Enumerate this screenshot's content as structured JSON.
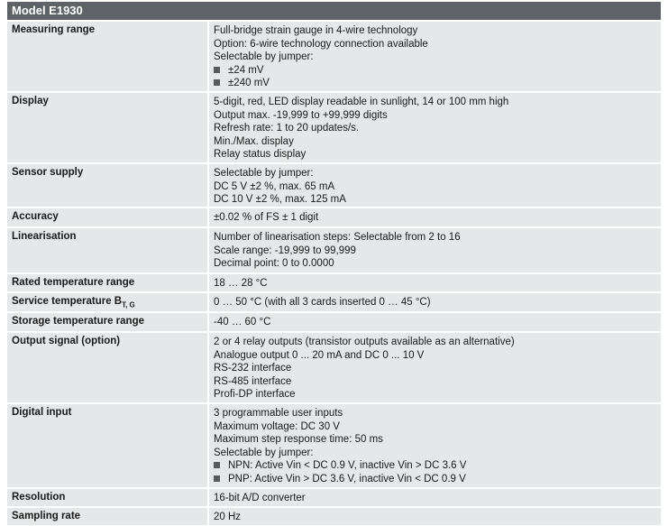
{
  "title": "Model E1930",
  "rows": [
    {
      "label": "Measuring range",
      "lines": [
        {
          "text": "Full-bridge strain gauge in 4-wire technology"
        },
        {
          "text": "Option: 6-wire technology connection available"
        },
        {
          "text": "Selectable by jumper:"
        },
        {
          "text": "±24 mV",
          "bullet": true
        },
        {
          "text": "±240 mV",
          "bullet": true
        }
      ]
    },
    {
      "label": "Display",
      "lines": [
        {
          "text": "5-digit, red, LED display readable in sunlight, 14 or 100 mm high"
        },
        {
          "text": "Output max. -19,999 to +99,999 digits"
        },
        {
          "text": "Refresh rate: 1 to 20 updates/s."
        },
        {
          "text": "Min./Max. display"
        },
        {
          "text": "Relay status display"
        }
      ]
    },
    {
      "label": "Sensor supply",
      "lines": [
        {
          "text": "Selectable by jumper:"
        },
        {
          "text": "DC 5 V ±2 %, max. 65 mA"
        },
        {
          "text": "DC 10 V ±2 %, max. 125 mA"
        }
      ]
    },
    {
      "label": "Accuracy",
      "lines": [
        {
          "text": "±0.02 % of FS ± 1 digit"
        }
      ]
    },
    {
      "label": "Linearisation",
      "lines": [
        {
          "text": "Number of linearisation steps: Selectable from 2 to 16"
        },
        {
          "text": "Scale range: -19,999 to 99,999"
        },
        {
          "text": "Decimal point: 0 to 0.0000"
        }
      ]
    },
    {
      "label": "Rated temperature range",
      "lines": [
        {
          "text": "18 … 28 °C"
        }
      ]
    },
    {
      "label": "Service temperature B",
      "label_sub": "T, G",
      "lines": [
        {
          "text": "0 … 50 °C (with all 3 cards inserted 0 … 45 °C)"
        }
      ]
    },
    {
      "label": "Storage temperature range",
      "lines": [
        {
          "text": "-40 … 60 °C"
        }
      ]
    },
    {
      "label": "Output signal (option)",
      "lines": [
        {
          "text": "2 or 4 relay outputs (transistor outputs available as an alternative)"
        },
        {
          "text": "Analogue output 0 ... 20 mA and DC 0 ... 10 V"
        },
        {
          "text": "RS-232 interface"
        },
        {
          "text": "RS-485 interface"
        },
        {
          "text": "Profi-DP interface"
        }
      ]
    },
    {
      "label": "Digital input",
      "lines": [
        {
          "text": "3 programmable user inputs"
        },
        {
          "text": "Maximum voltage: DC 30 V"
        },
        {
          "text": "Maximum step response time: 50 ms"
        },
        {
          "text": "Selectable by jumper:"
        },
        {
          "text": "NPN: Active Vin < DC 0.9 V, inactive Vin > DC 3.6 V",
          "bullet": true
        },
        {
          "text": "PNP: Active Vin > DC 3.6 V, inactive Vin < DC 0.9 V",
          "bullet": true
        }
      ]
    },
    {
      "label": "Resolution",
      "lines": [
        {
          "text": "16-bit A/D converter"
        }
      ]
    },
    {
      "label": "Sampling rate",
      "lines": [
        {
          "text": "20 Hz"
        }
      ]
    }
  ]
}
